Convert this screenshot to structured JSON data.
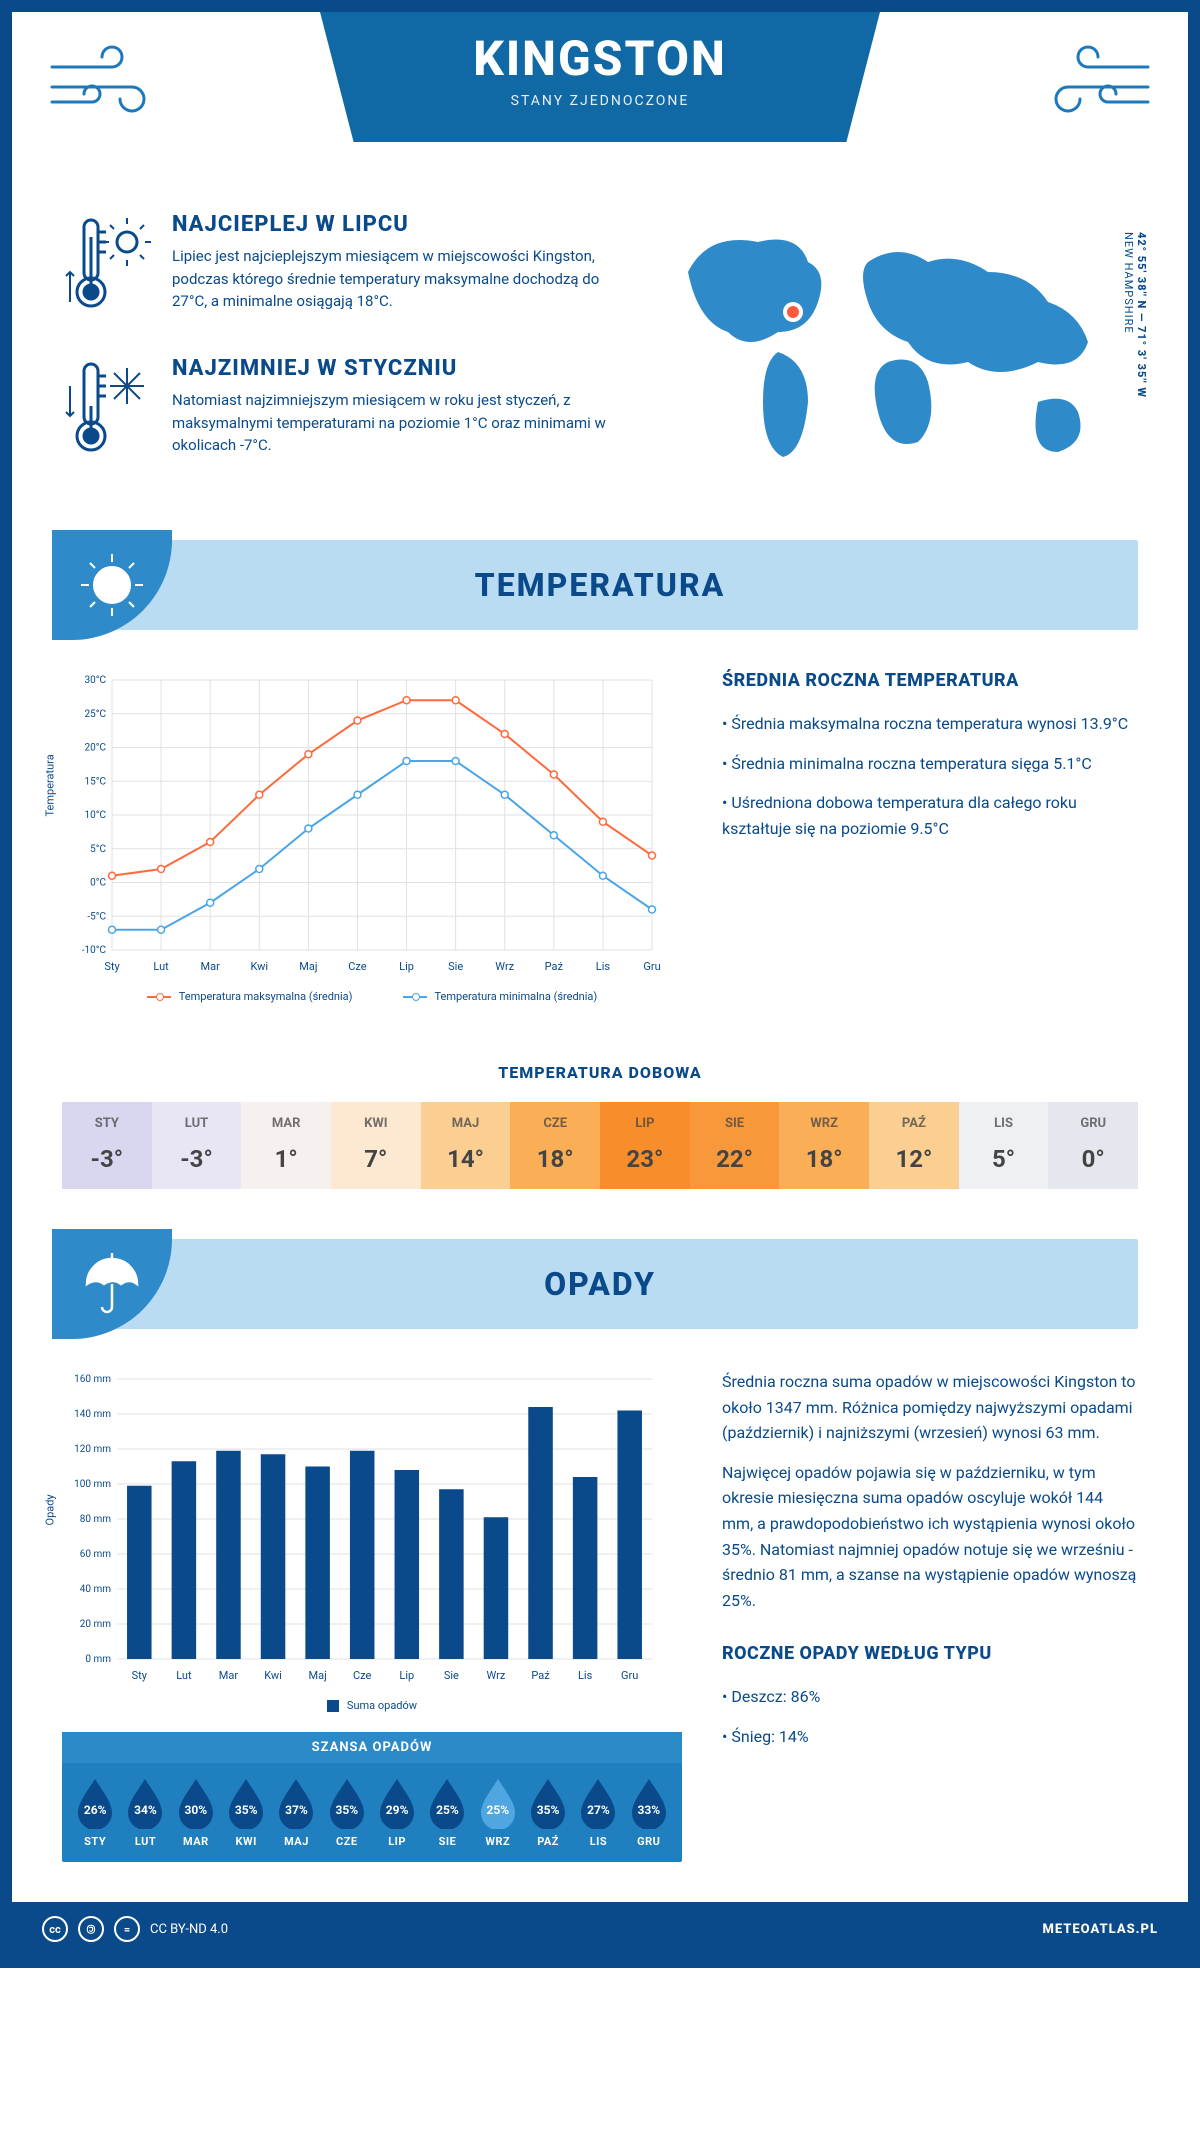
{
  "header": {
    "city": "KINGSTON",
    "country": "STANY ZJEDNOCZONE"
  },
  "coords": {
    "lat": "42° 55' 38'' N",
    "lon": "71° 3' 35'' W",
    "region": "NEW HAMPSHIRE"
  },
  "facts": {
    "hot": {
      "title": "NAJCIEPLEJ W LIPCU",
      "text": "Lipiec jest najcieplejszym miesiącem w miejscowości Kingston, podczas którego średnie temperatury maksymalne dochodzą do 27°C, a minimalne osiągają 18°C."
    },
    "cold": {
      "title": "NAJZIMNIEJ W STYCZNIU",
      "text": "Natomiast najzimniejszym miesiącem w roku jest styczeń, z maksymalnymi temperaturami na poziomie 1°C oraz minimami w okolicach -7°C."
    }
  },
  "months_short": [
    "Sty",
    "Lut",
    "Mar",
    "Kwi",
    "Maj",
    "Cze",
    "Lip",
    "Sie",
    "Wrz",
    "Paź",
    "Lis",
    "Gru"
  ],
  "months_upper": [
    "STY",
    "LUT",
    "MAR",
    "KWI",
    "MAJ",
    "CZE",
    "LIP",
    "SIE",
    "WRZ",
    "PAŹ",
    "LIS",
    "GRU"
  ],
  "temperature": {
    "section_title": "TEMPERATURA",
    "chart": {
      "ylabel": "Temperatura",
      "ylim": [
        -10,
        30
      ],
      "ytick_step": 5,
      "ytick_suffix": "°C",
      "grid_color": "#e1e1e1",
      "series": {
        "max": {
          "color": "#ff6a3d",
          "label": "Temperatura maksymalna (średnia)",
          "values": [
            1,
            2,
            6,
            13,
            19,
            24,
            27,
            27,
            22,
            16,
            9,
            4
          ]
        },
        "min": {
          "color": "#49a5e6",
          "label": "Temperatura minimalna (średnia)",
          "values": [
            -7,
            -7,
            -3,
            2,
            8,
            13,
            18,
            18,
            13,
            7,
            1,
            -4
          ]
        }
      }
    },
    "avg": {
      "title": "ŚREDNIA ROCZNA TEMPERATURA",
      "lines": [
        "Średnia maksymalna roczna temperatura wynosi 13.9°C",
        "Średnia minimalna roczna temperatura sięga 5.1°C",
        "Uśredniona dobowa temperatura dla całego roku kształtuje się na poziomie 9.5°C"
      ]
    },
    "daily": {
      "title": "TEMPERATURA DOBOWA",
      "values": [
        "-3°",
        "-3°",
        "1°",
        "7°",
        "14°",
        "18°",
        "23°",
        "22°",
        "18°",
        "12°",
        "5°",
        "0°"
      ],
      "colors": [
        "#d8d7ef",
        "#e8e6f5",
        "#f6f0ee",
        "#fde9d2",
        "#fbcf92",
        "#faae55",
        "#f88e2b",
        "#f7983a",
        "#faae55",
        "#fbcf92",
        "#eef0f3",
        "#e4e8ee"
      ]
    }
  },
  "precipitation": {
    "section_title": "OPADY",
    "chart": {
      "ylabel": "Opady",
      "ylim": [
        0,
        160
      ],
      "ytick_step": 20,
      "ytick_suffix": " mm",
      "bar_color": "#0a4a8a",
      "grid_color": "#e1e1e1",
      "values": [
        99,
        113,
        119,
        117,
        110,
        119,
        108,
        97,
        81,
        144,
        104,
        142
      ],
      "legend": "Suma opadów"
    },
    "text": {
      "p1": "Średnia roczna suma opadów w miejscowości Kingston to około 1347 mm. Różnica pomiędzy najwyższymi opadami (październik) i najniższymi (wrzesień) wynosi 63 mm.",
      "p2": "Najwięcej opadów pojawia się w październiku, w tym okresie miesięczna suma opadów oscyluje wokół 144 mm, a prawdopodobieństwo ich wystąpienia wynosi około 35%. Natomiast najmniej opadów notuje się we wrześniu - średnio 81 mm, a szanse na wystąpienie opadów wynoszą 25%."
    },
    "chance": {
      "title": "SZANSA OPADÓW",
      "values": [
        "26%",
        "34%",
        "30%",
        "35%",
        "37%",
        "35%",
        "29%",
        "25%",
        "25%",
        "35%",
        "27%",
        "33%"
      ],
      "min_index": 8,
      "drop_fill": "#0a4a8a",
      "drop_fill_light": "#4fa6e0"
    },
    "by_type": {
      "title": "ROCZNE OPADY WEDŁUG TYPU",
      "lines": [
        "Deszcz: 86%",
        "Śnieg: 14%"
      ]
    }
  },
  "footer": {
    "license": "CC BY-ND 4.0",
    "site": "METEOATLAS.PL"
  },
  "colors": {
    "primary": "#0a4a8a",
    "light": "#b9dcf2",
    "mid": "#2f8ac9"
  }
}
